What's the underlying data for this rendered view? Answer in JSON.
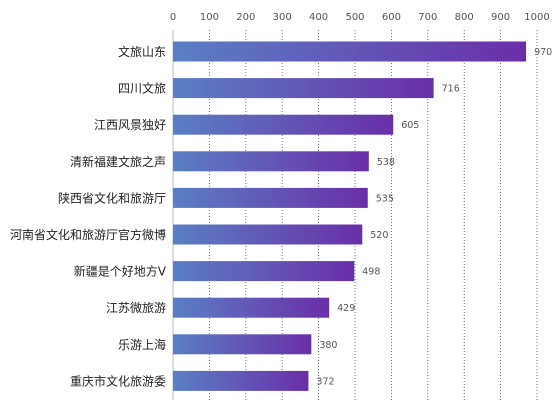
{
  "chart_data": {
    "type": "bar",
    "orientation": "horizontal",
    "title": "",
    "xlabel": "",
    "ylabel": "",
    "categories": [
      "文旅山东",
      "四川文旅",
      "江西风景独好",
      "清新福建文旅之声",
      "陕西省文化和旅游厅",
      "河南省文化和旅游厅官方微博",
      "新疆是个好地方V",
      "江苏微旅游",
      "乐游上海",
      "重庆市文化旅游委"
    ],
    "values": [
      970,
      716,
      605,
      538,
      535,
      520,
      498,
      429,
      380,
      372
    ],
    "xlim": [
      0,
      1000
    ],
    "ticks": [
      0,
      100,
      200,
      300,
      400,
      500,
      600,
      700,
      800,
      900,
      1000
    ],
    "axis_position": "top",
    "grid": "vertical dotted",
    "legend": "none",
    "colors": {
      "bar_start": "#5a7fc4",
      "bar_end": "#6a2ea8",
      "grid": "#555555",
      "axis": "#bfbfbf"
    }
  }
}
